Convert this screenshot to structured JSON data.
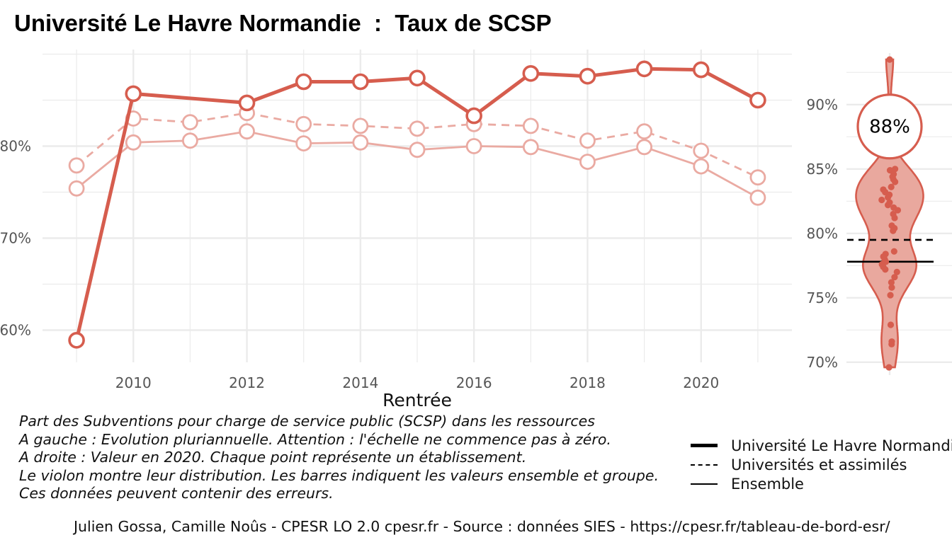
{
  "title": "Université Le Havre Normandie  :  Taux de SCSP",
  "colors": {
    "accent": "#d65d4e",
    "light": "#eaaaa2",
    "violin_fill": "#e9a89e",
    "grid": "#ebebeb",
    "reference": "#000000"
  },
  "chart_data": [
    {
      "type": "line",
      "title": "Evolution pluriannuelle",
      "xlabel": "Rentrée",
      "ylabel": "",
      "x": [
        2009,
        2010,
        2011,
        2012,
        2013,
        2014,
        2015,
        2016,
        2017,
        2018,
        2019,
        2020,
        2021
      ],
      "xlim": [
        2008.4,
        2021.6
      ],
      "ylim": [
        56.5,
        90.5
      ],
      "x_ticks": [
        2010,
        2012,
        2014,
        2016,
        2018,
        2020
      ],
      "x_tick_labels": [
        "2010",
        "2012",
        "2014",
        "2016",
        "2018",
        "2020"
      ],
      "y_ticks": [
        60,
        70,
        80
      ],
      "y_tick_labels": [
        "60%",
        "70%",
        "80%"
      ],
      "series": [
        {
          "name": "Université Le Havre Normandie",
          "style": "thick",
          "values": [
            58.9,
            85.7,
            null,
            84.7,
            87.0,
            87.0,
            87.4,
            83.3,
            87.9,
            87.6,
            88.4,
            88.3,
            85.0
          ]
        },
        {
          "name": "Universités et assimilés",
          "style": "dashed",
          "values": [
            77.9,
            83.0,
            82.6,
            83.6,
            82.4,
            82.2,
            81.9,
            82.4,
            82.2,
            80.6,
            81.6,
            79.5,
            76.6
          ]
        },
        {
          "name": "Ensemble",
          "style": "solid",
          "values": [
            75.4,
            80.4,
            80.6,
            81.6,
            80.3,
            80.4,
            79.6,
            80.0,
            79.9,
            78.3,
            79.9,
            77.8,
            74.4
          ]
        }
      ]
    },
    {
      "type": "violin",
      "title": "Valeur en 2020",
      "ylim": [
        69,
        94
      ],
      "y_ticks": [
        70,
        75,
        80,
        85,
        90
      ],
      "y_tick_labels": [
        "70%",
        "75%",
        "80%",
        "85%",
        "90%"
      ],
      "highlight_value": 88.3,
      "highlight_label": "88%",
      "reference_lines": [
        {
          "name": "Universités et assimilés",
          "value": 79.5,
          "style": "dashed"
        },
        {
          "name": "Ensemble",
          "value": 77.8,
          "style": "solid"
        }
      ],
      "points": [
        93.5,
        85.0,
        84.9,
        84.6,
        84.4,
        84.2,
        84.0,
        83.6,
        83.4,
        83.2,
        83.0,
        82.8,
        82.6,
        82.4,
        82.2,
        82.0,
        81.8,
        81.5,
        81.2,
        80.6,
        80.4,
        80.2,
        78.6,
        78.4,
        78.2,
        78.0,
        77.8,
        77.6,
        77.4,
        77.2,
        77.0,
        76.6,
        76.2,
        75.8,
        75.2,
        72.9,
        71.6,
        71.4,
        69.6
      ]
    }
  ],
  "caption_lines": [
    "Part des Subventions pour charge de service public (SCSP) dans les ressources",
    "A gauche : Evolution pluriannuelle. Attention : l'échelle ne commence pas à zéro.",
    "A droite : Valeur en 2020. Chaque point représente un établissement.",
    "Le violon montre leur distribution. Les barres indiquent les valeurs ensemble et groupe.",
    "Ces données peuvent contenir des erreurs."
  ],
  "legend": [
    {
      "label": "Université Le Havre Normandie",
      "style": "thick"
    },
    {
      "label": "Universités et assimilés",
      "style": "dashed"
    },
    {
      "label": "Ensemble",
      "style": "solid"
    }
  ],
  "footer": "Julien Gossa, Camille Noûs - CPESR LO 2.0 cpesr.fr - Source : données SIES - https://cpesr.fr/tableau-de-bord-esr/"
}
